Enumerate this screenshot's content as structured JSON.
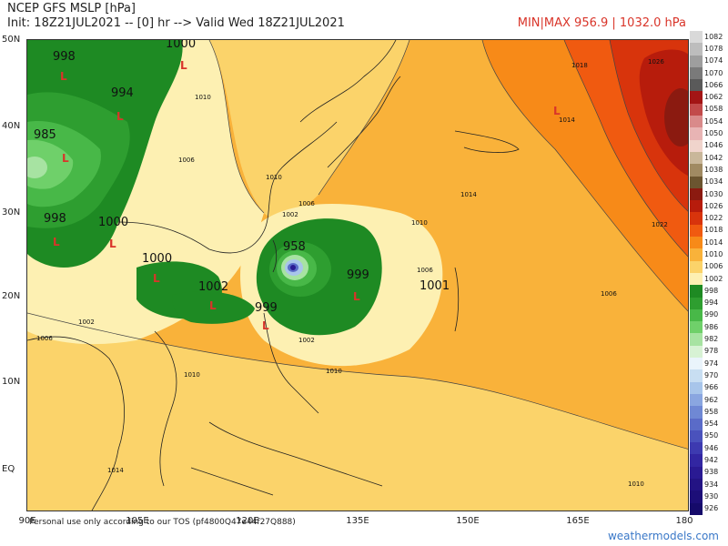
{
  "header": {
    "title": "NCEP GFS MSLP [hPa]",
    "subtitle": "Init: 18Z21JUL2021 -- [0] hr --> Valid Wed 18Z21JUL2021",
    "minmax": "MIN|MAX 956.9 | 1032.0 hPa"
  },
  "axes": {
    "lat_labels": [
      "50N",
      "40N",
      "30N",
      "20N",
      "10N",
      "EQ"
    ],
    "lon_labels": [
      "90E",
      "105E",
      "120E",
      "135E",
      "150E",
      "165E",
      "180"
    ]
  },
  "colorbar": {
    "levels": [
      "1082",
      "1078",
      "1074",
      "1070",
      "1066",
      "1062",
      "1058",
      "1054",
      "1050",
      "1046",
      "1042",
      "1038",
      "1034",
      "1030",
      "1026",
      "1022",
      "1018",
      "1014",
      "1010",
      "1006",
      "1002",
      "998",
      "994",
      "990",
      "986",
      "982",
      "978",
      "974",
      "970",
      "966",
      "962",
      "958",
      "954",
      "950",
      "946",
      "942",
      "938",
      "934",
      "930",
      "926"
    ],
    "colors": [
      "#d9d9d9",
      "#bdbdbd",
      "#9e9e9e",
      "#7a7a7a",
      "#5a5a5a",
      "#a31515",
      "#c24a4a",
      "#d98a8a",
      "#e8b4b4",
      "#f0d4cc",
      "#c9b79a",
      "#a08a62",
      "#6b5530",
      "#8b1a10",
      "#b71c0c",
      "#d8340c",
      "#f05a10",
      "#f78a18",
      "#f9b23a",
      "#fbd36a",
      "#fdf0b2",
      "#1e8a23",
      "#2e9e30",
      "#48b848",
      "#6fd06a",
      "#a7e3a2",
      "#d7f2d4",
      "#eaf4fb",
      "#c8def2",
      "#a8c5ea",
      "#8aa6e0",
      "#6f88d4",
      "#5a6bc8",
      "#4a52bc",
      "#3d3ab0",
      "#3226a2",
      "#2a1a93",
      "#231384",
      "#1c0e78",
      "#150a6a"
    ]
  },
  "map": {
    "pressure_labels": [
      "998",
      "994",
      "985",
      "1000",
      "998",
      "1000",
      "1000",
      "1002",
      "999",
      "958",
      "999",
      "1001"
    ],
    "small_labels": [
      "1010",
      "1006",
      "1010",
      "1006",
      "1002",
      "1002",
      "1018",
      "1014",
      "1014",
      "1022",
      "1026",
      "1010",
      "1006",
      "1010",
      "1006",
      "1014",
      "1010",
      "1006",
      "1002",
      "1010"
    ],
    "low_marker": "L",
    "low_marker_color": "#d9352a"
  },
  "footer": {
    "note": "Personal use only according to our TOS (pf4800Q47e44f27Q888)",
    "brand": "weathermodels.com"
  }
}
